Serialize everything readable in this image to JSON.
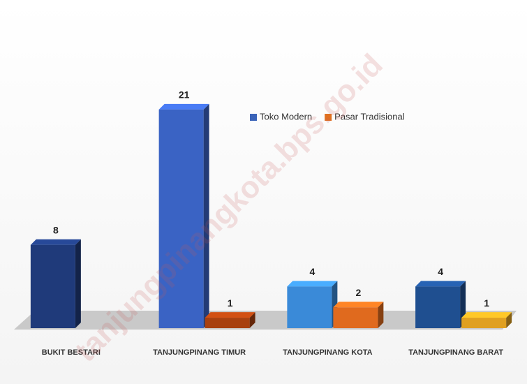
{
  "chart_data": {
    "type": "bar3d",
    "watermark": "tanjungpinangkota.bps.go.id",
    "categories": [
      "BUKIT BESTARI",
      "TANJUNGPINANG TIMUR",
      "TANJUNGPINANG KOTA",
      "TANJUNGPINANG BARAT"
    ],
    "series": [
      {
        "name": "Toko Modern",
        "color": "#3a63b8",
        "colors": [
          "#1f3a7a",
          "#3a63c4",
          "#3a8ad8",
          "#1f4f90"
        ],
        "values": [
          8,
          21,
          4,
          4
        ]
      },
      {
        "name": "Pasar Tradisional",
        "color": "#e07020",
        "colors": [
          "#c0561a",
          "#a8400f",
          "#e06a1e",
          "#e0a020"
        ],
        "values": [
          null,
          1,
          2,
          1
        ]
      }
    ],
    "ylim": [
      0,
      23
    ],
    "legend": "top-center"
  }
}
